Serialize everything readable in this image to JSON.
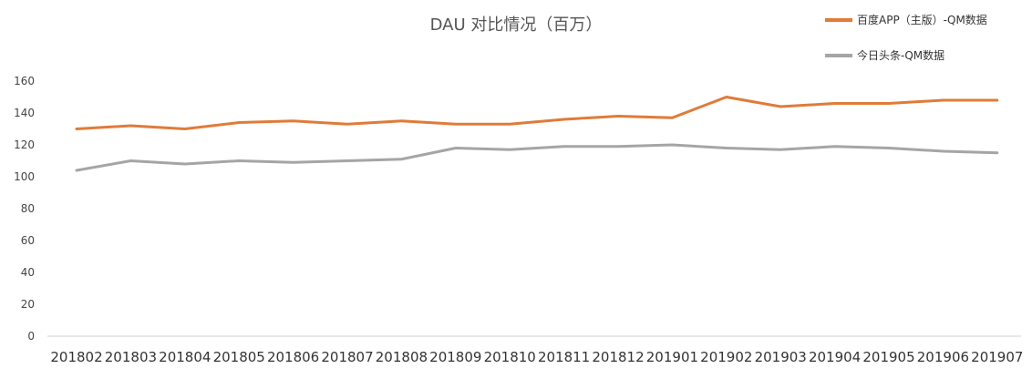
{
  "chart_data": {
    "type": "line",
    "title": "DAU 对比情况（百万）",
    "categories": [
      "201802",
      "201803",
      "201804",
      "201805",
      "201806",
      "201807",
      "201808",
      "201809",
      "201810",
      "201811",
      "201812",
      "201901",
      "201902",
      "201903",
      "201904",
      "201905",
      "201906",
      "201907"
    ],
    "series": [
      {
        "name": "百度APP（主版）-QM数据",
        "color": "#E07B39",
        "values": [
          130,
          132,
          130,
          134,
          135,
          133,
          135,
          133,
          133,
          136,
          138,
          137,
          150,
          144,
          146,
          146,
          148,
          148
        ]
      },
      {
        "name": "今日头条-QM数据",
        "color": "#A5A5A5",
        "values": [
          104,
          110,
          108,
          110,
          109,
          110,
          111,
          118,
          117,
          119,
          119,
          120,
          118,
          117,
          119,
          118,
          116,
          115
        ]
      }
    ],
    "yticks": [
      0,
      20,
      40,
      60,
      80,
      100,
      120,
      140,
      160
    ],
    "ylim": [
      0,
      160
    ],
    "grid": false,
    "legend_position": "top-right"
  }
}
